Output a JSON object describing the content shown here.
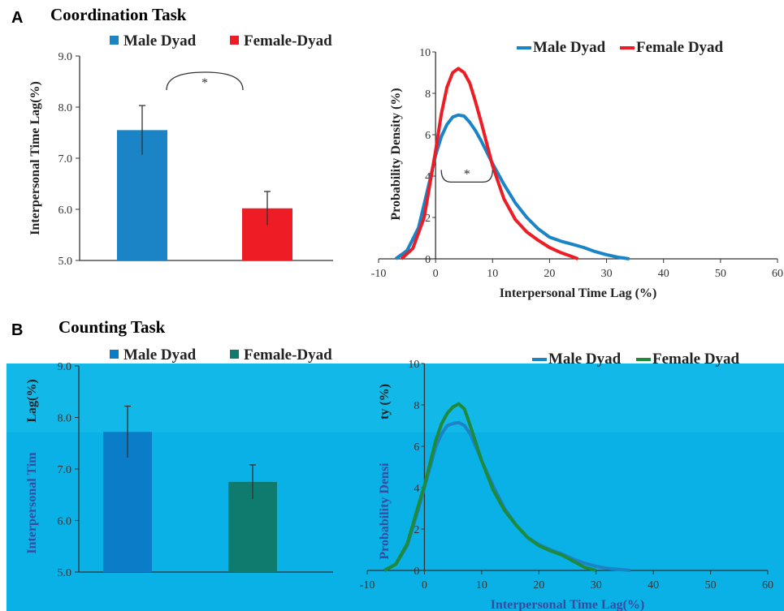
{
  "panels": {
    "a_label": "A",
    "a_title": "Coordination Task",
    "b_label": "B",
    "b_title": "Counting Task"
  },
  "colors": {
    "male": "#1a84c7",
    "female": "#ee1c24",
    "male_b": "#0a7cc8",
    "female_b": "#0f7a6e",
    "female_curve_b": "#1f8a3a",
    "overlay": "#12b8e8"
  },
  "chart_data": [
    {
      "type": "bar",
      "id": "a_bar",
      "legend": [
        "Male Dyad",
        "Female-Dyad"
      ],
      "categories": [
        "Male Dyad",
        "Female-Dyad"
      ],
      "values": [
        7.55,
        6.02
      ],
      "errors": [
        0.48,
        0.33
      ],
      "ylabel": "Interpersonal Time  Lag(%)",
      "ylim": [
        5.0,
        9.0
      ],
      "yticks": [
        "5.0",
        "6.0",
        "7.0",
        "8.0",
        "9.0"
      ],
      "annotation": "*"
    },
    {
      "type": "line",
      "id": "a_density",
      "legend": [
        "Male Dyad",
        "Female Dyad"
      ],
      "xlabel": "Interpersonal Time Lag (%)",
      "ylabel": "Probability Density (%)",
      "xlim": [
        -10,
        60
      ],
      "ylim": [
        0,
        10
      ],
      "xticks": [
        "-10",
        "0",
        "10",
        "20",
        "30",
        "40",
        "50",
        "60"
      ],
      "yticks": [
        "0",
        "2",
        "4",
        "6",
        "8",
        "10"
      ],
      "annotation": "*",
      "series": [
        {
          "name": "Male Dyad",
          "x": [
            -7,
            -5,
            -3,
            -1,
            0,
            1,
            2,
            3,
            4,
            5,
            6,
            7,
            8,
            10,
            12,
            14,
            16,
            18,
            20,
            22,
            24,
            26,
            28,
            30,
            32,
            34
          ],
          "y": [
            0,
            0.4,
            1.5,
            3.8,
            5.0,
            5.9,
            6.5,
            6.85,
            6.95,
            6.9,
            6.6,
            6.2,
            5.7,
            4.6,
            3.6,
            2.7,
            2.0,
            1.45,
            1.05,
            0.85,
            0.7,
            0.55,
            0.35,
            0.2,
            0.08,
            0
          ]
        },
        {
          "name": "Female Dyad",
          "x": [
            -6,
            -4,
            -2,
            0,
            1,
            2,
            3,
            4,
            5,
            6,
            7,
            8,
            10,
            12,
            14,
            16,
            18,
            20,
            22,
            24,
            25
          ],
          "y": [
            0,
            0.5,
            2.0,
            5.2,
            7.0,
            8.3,
            9.0,
            9.2,
            9.0,
            8.5,
            7.6,
            6.6,
            4.5,
            2.9,
            1.9,
            1.3,
            0.9,
            0.55,
            0.3,
            0.1,
            0
          ]
        }
      ]
    },
    {
      "type": "bar",
      "id": "b_bar",
      "legend": [
        "Male Dyad",
        "Female-Dyad"
      ],
      "categories": [
        "Male Dyad",
        "Female-Dyad"
      ],
      "values": [
        7.72,
        6.75
      ],
      "errors": [
        0.5,
        0.33
      ],
      "ylabel": "Interpersonal Tim",
      "ylabel_top": "Lag(%)",
      "ylim": [
        5.0,
        9.0
      ],
      "yticks": [
        "5.0",
        "6.0",
        "7.0",
        "8.0",
        "9.0"
      ]
    },
    {
      "type": "line",
      "id": "b_density",
      "legend": [
        "Male Dyad",
        "Female Dyad"
      ],
      "xlabel": "Interpersonal Time Lag(%)",
      "ylabel": "Probability Densi",
      "ylabel_top": "ty (%)",
      "xlim": [
        -10,
        60
      ],
      "ylim": [
        0,
        10
      ],
      "xticks": [
        "-10",
        "0",
        "10",
        "20",
        "30",
        "40",
        "50",
        "60"
      ],
      "yticks": [
        "0",
        "2",
        "4",
        "6",
        "8",
        "10"
      ],
      "series": [
        {
          "name": "Male Dyad",
          "x": [
            -7,
            -5,
            -3,
            -1,
            0,
            1,
            2,
            3,
            4,
            5,
            6,
            7,
            8,
            10,
            12,
            14,
            16,
            18,
            20,
            22,
            24,
            26,
            28,
            30,
            32,
            34,
            36
          ],
          "y": [
            0,
            0.3,
            1.2,
            3.0,
            4.0,
            5.0,
            6.0,
            6.6,
            7.0,
            7.1,
            7.15,
            7.0,
            6.6,
            5.3,
            4.1,
            3.0,
            2.2,
            1.6,
            1.25,
            1.0,
            0.8,
            0.55,
            0.35,
            0.2,
            0.1,
            0.05,
            0
          ]
        },
        {
          "name": "Female Dyad",
          "x": [
            -7,
            -5,
            -3,
            -1,
            0,
            1,
            2,
            3,
            4,
            5,
            6,
            7,
            8,
            10,
            12,
            14,
            16,
            18,
            20,
            22,
            24,
            26,
            28,
            30
          ],
          "y": [
            0,
            0.3,
            1.3,
            3.2,
            4.1,
            5.2,
            6.3,
            7.1,
            7.6,
            7.9,
            8.05,
            7.8,
            7.0,
            5.3,
            3.9,
            2.9,
            2.2,
            1.6,
            1.2,
            0.95,
            0.75,
            0.45,
            0.15,
            0
          ]
        }
      ]
    }
  ]
}
